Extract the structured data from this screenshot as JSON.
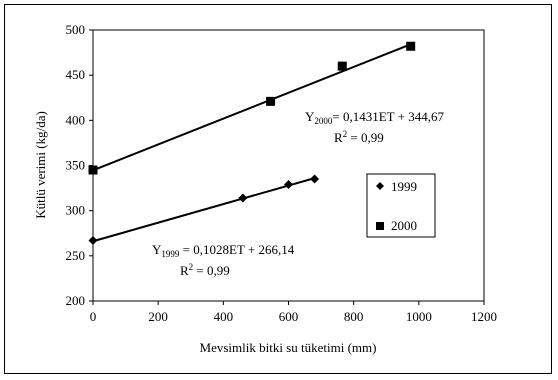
{
  "chart_data": {
    "type": "scatter",
    "xlabel": "Mevsimlik bitki su tüketimi (mm)",
    "ylabel": "Kütlü verimi (kg/da)",
    "xlim": [
      0,
      1200
    ],
    "ylim": [
      200,
      500
    ],
    "xticks": [
      0,
      200,
      400,
      600,
      800,
      1000,
      1200
    ],
    "yticks": [
      200,
      250,
      300,
      350,
      400,
      450,
      500
    ],
    "grid": false,
    "legend_position": "right",
    "series": [
      {
        "name": "1999",
        "marker": "diamond",
        "color": "#000000",
        "x": [
          0,
          460,
          600,
          680
        ],
        "y": [
          267,
          314,
          329,
          335
        ],
        "trendline": {
          "slope": 0.1028,
          "intercept": 266.14
        }
      },
      {
        "name": "2000",
        "marker": "square",
        "color": "#000000",
        "x": [
          0,
          545,
          765,
          975
        ],
        "y": [
          345,
          421,
          460,
          482
        ],
        "trendline": {
          "slope": 0.1431,
          "intercept": 344.67
        }
      }
    ],
    "annotations": [
      {
        "sym": "Y",
        "sub": "2000",
        "eq": "= 0,1431ET + 344,67",
        "r2": "R",
        "r2sup": "2",
        "r2val": " = 0,99"
      },
      {
        "sym": "Y",
        "sub": "1999",
        "eq": " = 0,1028ET + 266,14",
        "r2": "R",
        "r2sup": "2",
        "r2val": " = 0,99"
      }
    ]
  }
}
